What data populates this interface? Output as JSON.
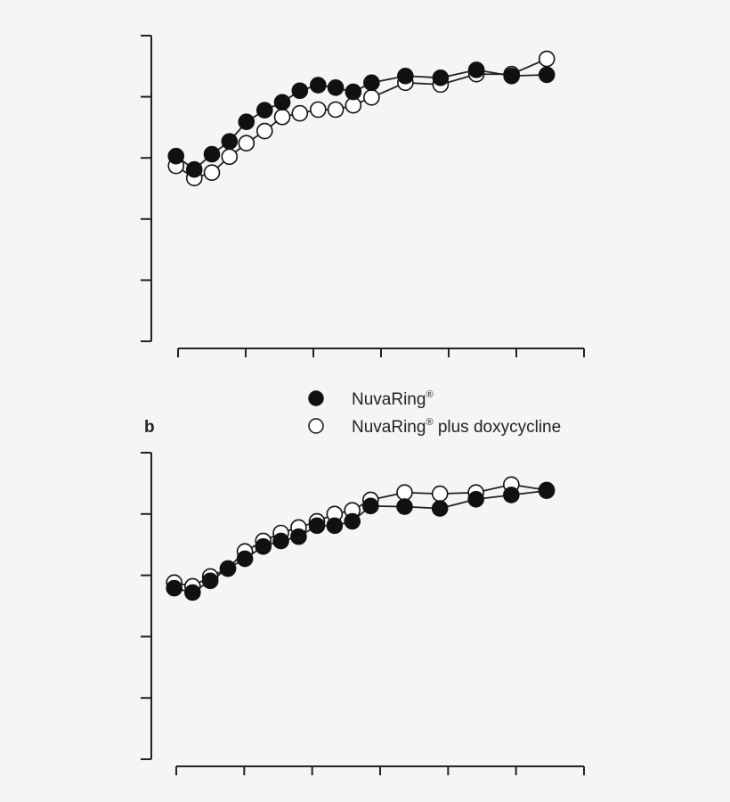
{
  "colors": {
    "background": "#f5f5f5",
    "line": "#222222",
    "filled_marker": "#111111",
    "open_marker": "#ffffff"
  },
  "legend": {
    "placement": "between panels, center-right",
    "items": [
      {
        "marker": "filled-circle",
        "label": "NuvaRing",
        "sup": "®"
      },
      {
        "marker": "open-circle",
        "label": "NuvaRing",
        "sup": "®",
        "label_suffix": " plus doxycycline"
      }
    ]
  },
  "chart_data": [
    {
      "type": "line",
      "panel_label": "",
      "xlim": [
        0,
        6
      ],
      "ylim": [
        0,
        5
      ],
      "x_ticks": [
        0,
        1,
        2,
        3,
        4,
        5,
        6
      ],
      "y_ticks": [
        0,
        1,
        2,
        3,
        4,
        5
      ],
      "tick_labels_shown": false,
      "grid": false,
      "x": [
        -0.03,
        0.24,
        0.5,
        0.76,
        1.01,
        1.28,
        1.54,
        1.8,
        2.07,
        2.33,
        2.59,
        2.86,
        3.36,
        3.88,
        4.41,
        4.93,
        5.45
      ],
      "series": [
        {
          "name": "NuvaRing®",
          "marker": "filled",
          "values": [
            3.03,
            2.81,
            3.06,
            3.27,
            3.59,
            3.78,
            3.91,
            4.1,
            4.19,
            4.15,
            4.08,
            4.23,
            4.34,
            4.31,
            4.44,
            4.34,
            4.36
          ]
        },
        {
          "name": "NuvaRing® plus doxycycline",
          "marker": "open",
          "values": [
            2.87,
            2.67,
            2.76,
            3.02,
            3.24,
            3.44,
            3.67,
            3.73,
            3.79,
            3.79,
            3.86,
            3.99,
            4.23,
            4.2,
            4.37,
            4.37,
            4.62
          ]
        }
      ]
    },
    {
      "type": "line",
      "panel_label": "b",
      "xlim": [
        0,
        6
      ],
      "ylim": [
        0,
        5
      ],
      "x_ticks": [
        0,
        1,
        2,
        3,
        4,
        5,
        6
      ],
      "y_ticks": [
        0,
        1,
        2,
        3,
        4,
        5
      ],
      "tick_labels_shown": false,
      "grid": false,
      "x": [
        -0.03,
        0.24,
        0.5,
        0.76,
        1.01,
        1.28,
        1.54,
        1.8,
        2.07,
        2.33,
        2.59,
        2.86,
        3.36,
        3.88,
        4.41,
        4.93,
        5.45
      ],
      "series": [
        {
          "name": "NuvaRing®",
          "marker": "filled",
          "values": [
            2.79,
            2.72,
            2.91,
            3.11,
            3.27,
            3.47,
            3.56,
            3.63,
            3.81,
            3.81,
            3.88,
            4.13,
            4.12,
            4.09,
            4.24,
            4.31,
            4.38
          ]
        },
        {
          "name": "NuvaRing® plus doxycycline",
          "marker": "open",
          "values": [
            2.88,
            2.82,
            2.98,
            3.11,
            3.39,
            3.56,
            3.69,
            3.78,
            3.88,
            4.0,
            4.06,
            4.23,
            4.35,
            4.33,
            4.35,
            4.48,
            4.39
          ]
        }
      ]
    }
  ]
}
